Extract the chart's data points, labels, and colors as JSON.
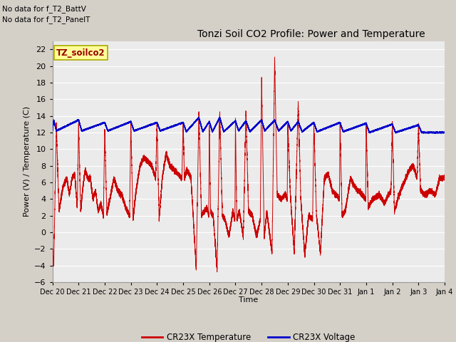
{
  "title": "Tonzi Soil CO2 Profile: Power and Temperature",
  "ylabel": "Power (V) / Temperature (C)",
  "xlabel": "Time",
  "top_left_text1": "No data for f_T2_BattV",
  "top_left_text2": "No data for f_T2_PanelT",
  "legend_box_label": "TZ_soilco2",
  "ylim": [
    -6,
    23
  ],
  "yticks": [
    -6,
    -4,
    -2,
    0,
    2,
    4,
    6,
    8,
    10,
    12,
    14,
    16,
    18,
    20,
    22
  ],
  "xlim": [
    0,
    15
  ],
  "bg_color": "#e0e0e0",
  "plot_bg_color": "#ebebeb",
  "red_color": "#cc0000",
  "blue_color": "#0000cc",
  "legend_items": [
    "CR23X Temperature",
    "CR23X Voltage"
  ],
  "tick_labels": [
    "Dec 20",
    "Dec 21",
    "Dec 22",
    "Dec 23",
    "Dec 24",
    "Dec 25",
    "Dec 26",
    "Dec 27",
    "Dec 28",
    "Dec 29",
    "Dec 30",
    "Dec 31",
    "Jan 1",
    "Jan 2",
    "Jan 3",
    "Jan 4"
  ]
}
